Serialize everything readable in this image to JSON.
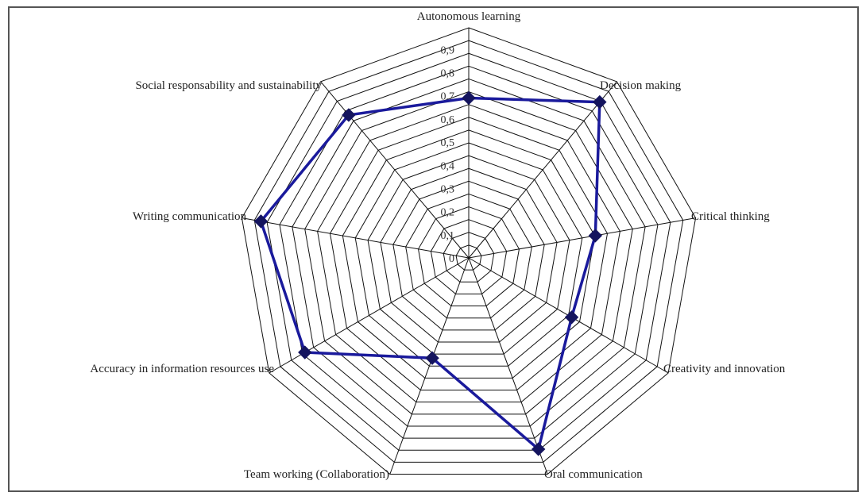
{
  "chart_data": {
    "type": "radar",
    "title": "",
    "categories": [
      "Autonomous learning",
      "Decision making",
      "Critical thinking",
      "Creativity and innovation",
      "Oral communication",
      "Team working (Collaboration)",
      "Accuracy in information resources use",
      "Writing communication",
      "Social responsability and sustainability"
    ],
    "ticks": [
      "0",
      "0,1",
      "0,2",
      "0,3",
      "0,4",
      "0,5",
      "0,6",
      "0,7",
      "0,8",
      "0,9"
    ],
    "range": [
      0,
      0.9
    ],
    "series": [
      {
        "name": "",
        "color": "#1a1a9c",
        "values": [
          0.66,
          0.84,
          0.53,
          0.49,
          0.84,
          0.44,
          0.78,
          0.87,
          0.77
        ]
      }
    ]
  }
}
